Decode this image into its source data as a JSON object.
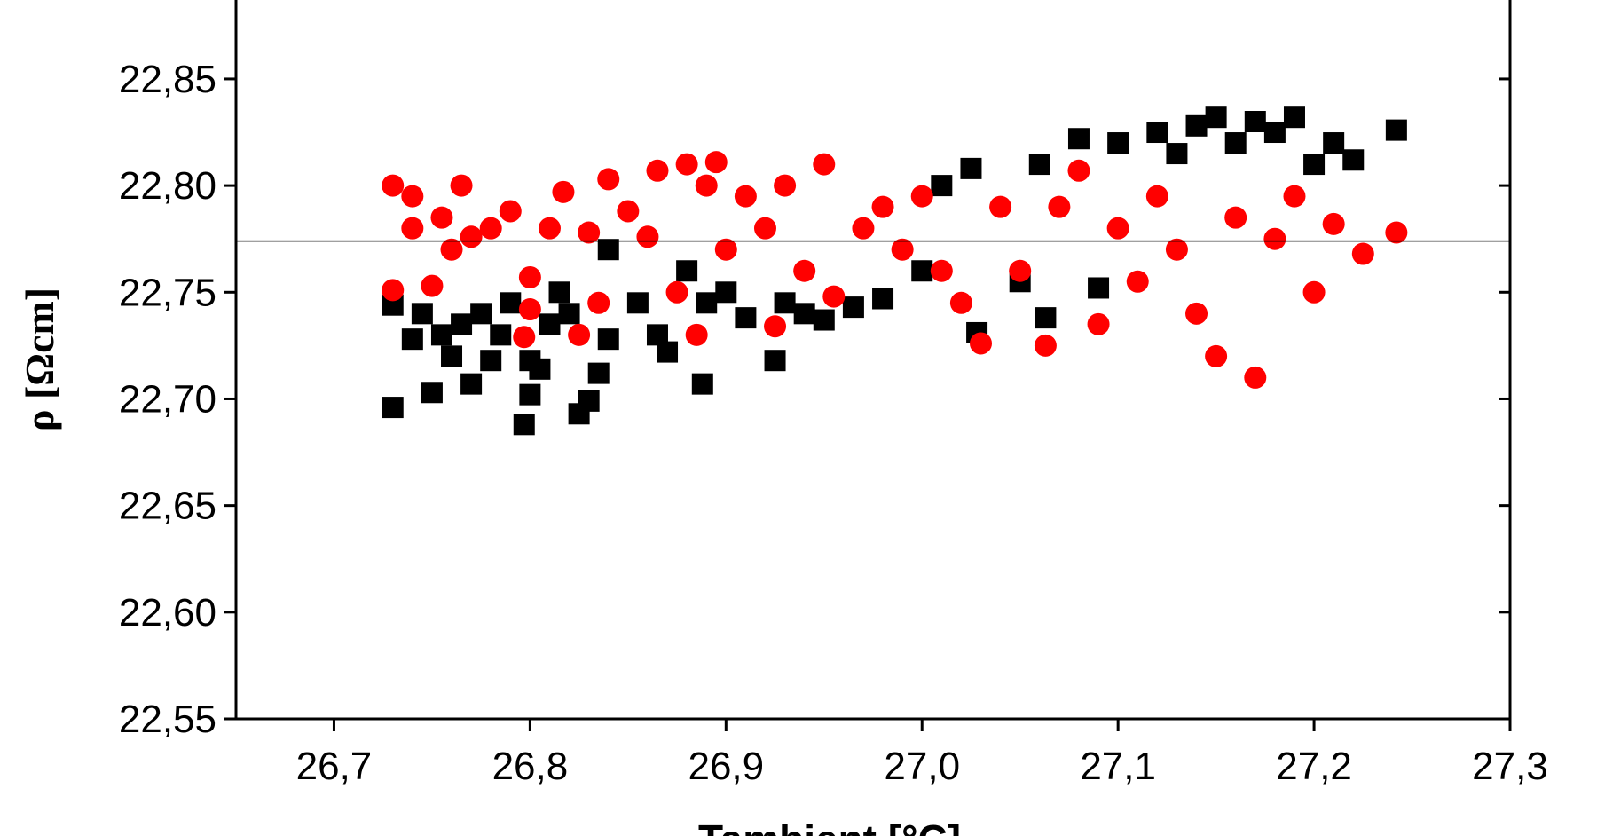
{
  "chart_data": {
    "type": "scatter",
    "x_label": "Tambient [°C]",
    "y_label": "ρ [Ωcm]",
    "xlim": [
      26.65,
      27.3
    ],
    "ylim": [
      22.55,
      22.887
    ],
    "xticks": [
      {
        "value": 26.7,
        "label": "26,7"
      },
      {
        "value": 26.8,
        "label": "26,8"
      },
      {
        "value": 26.9,
        "label": "26,9"
      },
      {
        "value": 27.0,
        "label": "27,0"
      },
      {
        "value": 27.1,
        "label": "27,1"
      },
      {
        "value": 27.2,
        "label": "27,2"
      },
      {
        "value": 27.3,
        "label": "27,3"
      }
    ],
    "yticks": [
      {
        "value": 22.55,
        "label": "22,55"
      },
      {
        "value": 22.6,
        "label": "22,60"
      },
      {
        "value": 22.65,
        "label": "22,65"
      },
      {
        "value": 22.7,
        "label": "22,70"
      },
      {
        "value": 22.75,
        "label": "22,75"
      },
      {
        "value": 22.8,
        "label": "22,80"
      },
      {
        "value": 22.85,
        "label": "22,85"
      }
    ],
    "hline": 22.774,
    "series": [
      {
        "color": "#000000",
        "marker": "square",
        "x": [
          26.73,
          26.73,
          26.74,
          26.745,
          26.75,
          26.755,
          26.76,
          26.765,
          26.77,
          26.775,
          26.78,
          26.785,
          26.79,
          26.797,
          26.8,
          26.8,
          26.805,
          26.81,
          26.815,
          26.82,
          26.825,
          26.83,
          26.835,
          26.84,
          26.84,
          26.855,
          26.865,
          26.87,
          26.88,
          26.888,
          26.89,
          26.9,
          26.91,
          26.925,
          26.93,
          26.94,
          26.95,
          26.965,
          26.98,
          27.0,
          27.01,
          27.025,
          27.028,
          27.05,
          27.06,
          27.063,
          27.08,
          27.09,
          27.1,
          27.12,
          27.13,
          27.14,
          27.15,
          27.16,
          27.17,
          27.18,
          27.19,
          27.2,
          27.21,
          27.22,
          27.242
        ],
        "values": [
          22.696,
          22.744,
          22.728,
          22.74,
          22.703,
          22.73,
          22.72,
          22.735,
          22.707,
          22.74,
          22.718,
          22.73,
          22.745,
          22.688,
          22.702,
          22.718,
          22.714,
          22.735,
          22.75,
          22.74,
          22.693,
          22.699,
          22.712,
          22.728,
          22.77,
          22.745,
          22.73,
          22.722,
          22.76,
          22.707,
          22.745,
          22.75,
          22.738,
          22.718,
          22.745,
          22.74,
          22.737,
          22.743,
          22.747,
          22.76,
          22.8,
          22.808,
          22.731,
          22.755,
          22.81,
          22.738,
          22.822,
          22.752,
          22.82,
          22.825,
          22.815,
          22.828,
          22.832,
          22.82,
          22.83,
          22.825,
          22.832,
          22.81,
          22.82,
          22.812,
          22.826
        ]
      },
      {
        "color": "#ff0000",
        "marker": "circle",
        "x": [
          26.73,
          26.73,
          26.74,
          26.74,
          26.75,
          26.755,
          26.76,
          26.765,
          26.77,
          26.78,
          26.79,
          26.797,
          26.8,
          26.8,
          26.81,
          26.817,
          26.825,
          26.83,
          26.835,
          26.84,
          26.85,
          26.86,
          26.865,
          26.875,
          26.88,
          26.885,
          26.89,
          26.895,
          26.9,
          26.91,
          26.92,
          26.925,
          26.93,
          26.94,
          26.95,
          26.955,
          26.97,
          26.98,
          26.99,
          27.0,
          27.01,
          27.02,
          27.03,
          27.04,
          27.05,
          27.063,
          27.07,
          27.08,
          27.09,
          27.1,
          27.11,
          27.12,
          27.13,
          27.14,
          27.15,
          27.16,
          27.17,
          27.18,
          27.19,
          27.2,
          27.21,
          27.225,
          27.242
        ],
        "values": [
          22.8,
          22.751,
          22.795,
          22.78,
          22.753,
          22.785,
          22.77,
          22.8,
          22.776,
          22.78,
          22.788,
          22.729,
          22.742,
          22.757,
          22.78,
          22.797,
          22.73,
          22.778,
          22.745,
          22.803,
          22.788,
          22.776,
          22.807,
          22.75,
          22.81,
          22.73,
          22.8,
          22.811,
          22.77,
          22.795,
          22.78,
          22.734,
          22.8,
          22.76,
          22.81,
          22.748,
          22.78,
          22.79,
          22.77,
          22.795,
          22.76,
          22.745,
          22.726,
          22.79,
          22.76,
          22.725,
          22.79,
          22.807,
          22.735,
          22.78,
          22.755,
          22.795,
          22.77,
          22.74,
          22.72,
          22.785,
          22.71,
          22.775,
          22.795,
          22.75,
          22.782,
          22.768,
          22.778
        ]
      }
    ]
  }
}
